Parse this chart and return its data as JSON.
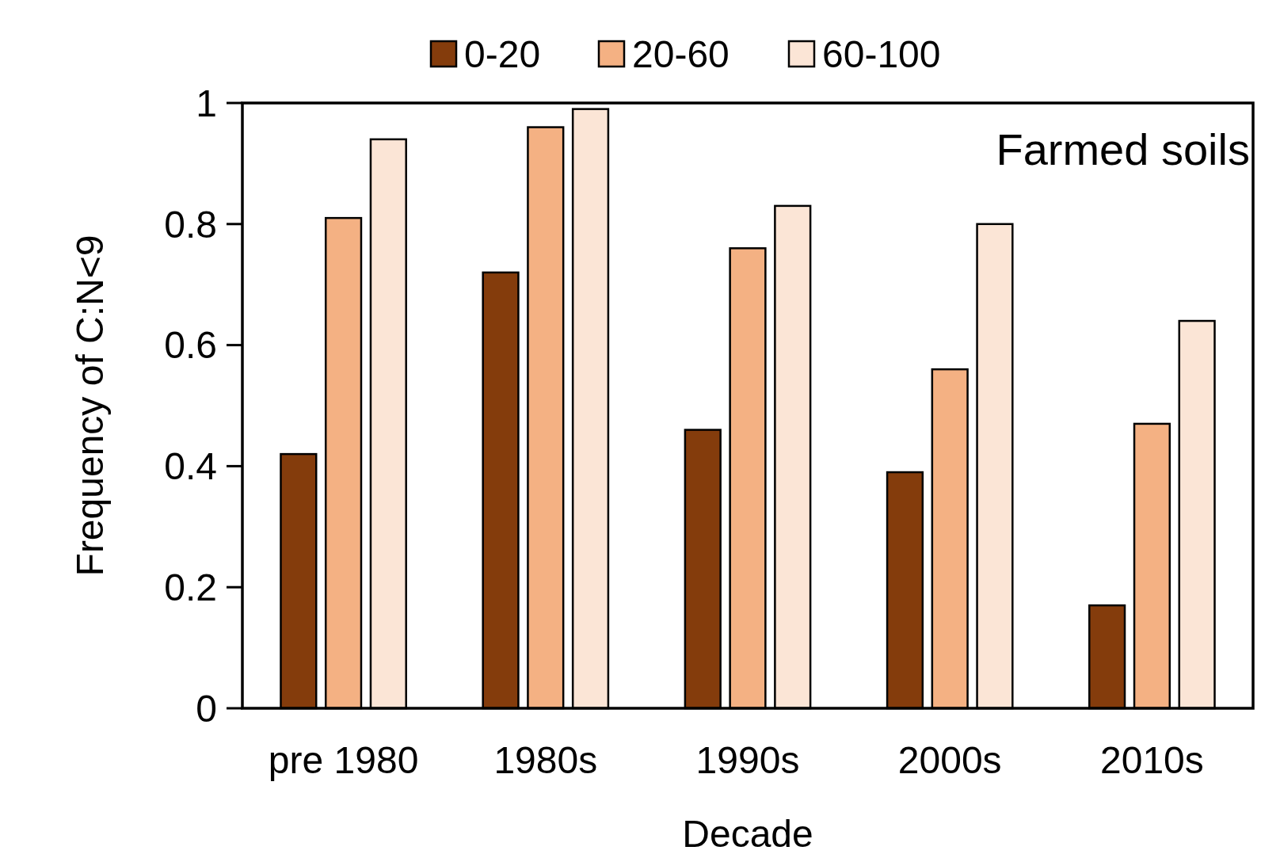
{
  "chart_data": {
    "type": "bar",
    "xlabel": "Decade",
    "ylabel": "Frequency of C:N<9",
    "categories": [
      "pre 1980",
      "1980s",
      "1990s",
      "2000s",
      "2010s"
    ],
    "series": [
      {
        "name": "0-20",
        "color": "#843c0c",
        "values": [
          0.42,
          0.72,
          0.46,
          0.39,
          0.17
        ]
      },
      {
        "name": "20-60",
        "color": "#f4b183",
        "values": [
          0.81,
          0.96,
          0.76,
          0.56,
          0.47
        ]
      },
      {
        "name": "60-100",
        "color": "#fbe5d6",
        "values": [
          0.94,
          0.99,
          0.83,
          0.8,
          0.64
        ]
      }
    ],
    "ylim": [
      0,
      1
    ],
    "yticks": [
      0,
      0.2,
      0.4,
      0.6,
      0.8,
      1
    ],
    "grid": false,
    "legend": "top",
    "annotations": [
      "Farmed soils"
    ]
  }
}
